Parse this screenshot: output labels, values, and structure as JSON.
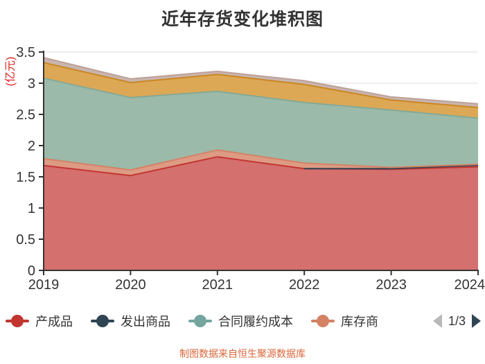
{
  "title": "近年存货变化堆积图",
  "y_axis": {
    "name": "(亿元)",
    "name_color": "#e02222",
    "tick_color": "#333333"
  },
  "footer": {
    "text": "制图数据来自恒生聚源数据库",
    "color": "#d9663a"
  },
  "legend": {
    "items": [
      {
        "label": "产成品",
        "color": "#c23531"
      },
      {
        "label": "发出商品",
        "color": "#2f4554"
      },
      {
        "label": "合同履约成本",
        "color": "#74a69f"
      },
      {
        "label": "库存商",
        "color": "#d48265"
      }
    ],
    "pagination": "1/3",
    "prev_color": "#b9b9b9",
    "next_color": "#2f4554"
  },
  "chart_data": {
    "type": "area",
    "stacked": true,
    "title": "近年存货变化堆积图",
    "xlabel": "",
    "ylabel": "(亿元)",
    "categories": [
      "2019",
      "2020",
      "2021",
      "2022",
      "2023",
      "2024"
    ],
    "ylim": [
      0,
      3.5
    ],
    "ytick_step": 0.5,
    "grid": true,
    "legend_position": "bottom",
    "legend_note": "legend paged 1/3 — last two stacked series have labels on hidden pages",
    "series": [
      {
        "name": "产成品",
        "line_color": "#c23531",
        "area_color": "#d4706e",
        "values": [
          1.68,
          1.52,
          1.82,
          1.63,
          1.62,
          1.66
        ]
      },
      {
        "name": "发出商品",
        "line_color": "#2f4554",
        "area_color": "#596a76",
        "values": [
          0,
          0,
          0,
          0,
          0.01,
          0.03
        ]
      },
      {
        "name": "库存商",
        "line_color": "#d48265",
        "area_color": "#dd9b84",
        "values": [
          0.11,
          0.09,
          0.11,
          0.09,
          0.02,
          0.01
        ]
      },
      {
        "name": "合同履约成本",
        "line_color": "#84a996",
        "area_color": "#9cbaa9",
        "values": [
          1.29,
          1.16,
          0.94,
          0.97,
          0.92,
          0.74
        ]
      },
      {
        "name": "",
        "line_color": "#ca8622",
        "area_color": "#dda855",
        "values": [
          0.25,
          0.24,
          0.27,
          0.29,
          0.16,
          0.17
        ]
      },
      {
        "name": "",
        "line_color": "#bda29a",
        "area_color": "#c9b4ae",
        "values": [
          0.08,
          0.06,
          0.05,
          0.06,
          0.05,
          0.06
        ]
      }
    ]
  }
}
